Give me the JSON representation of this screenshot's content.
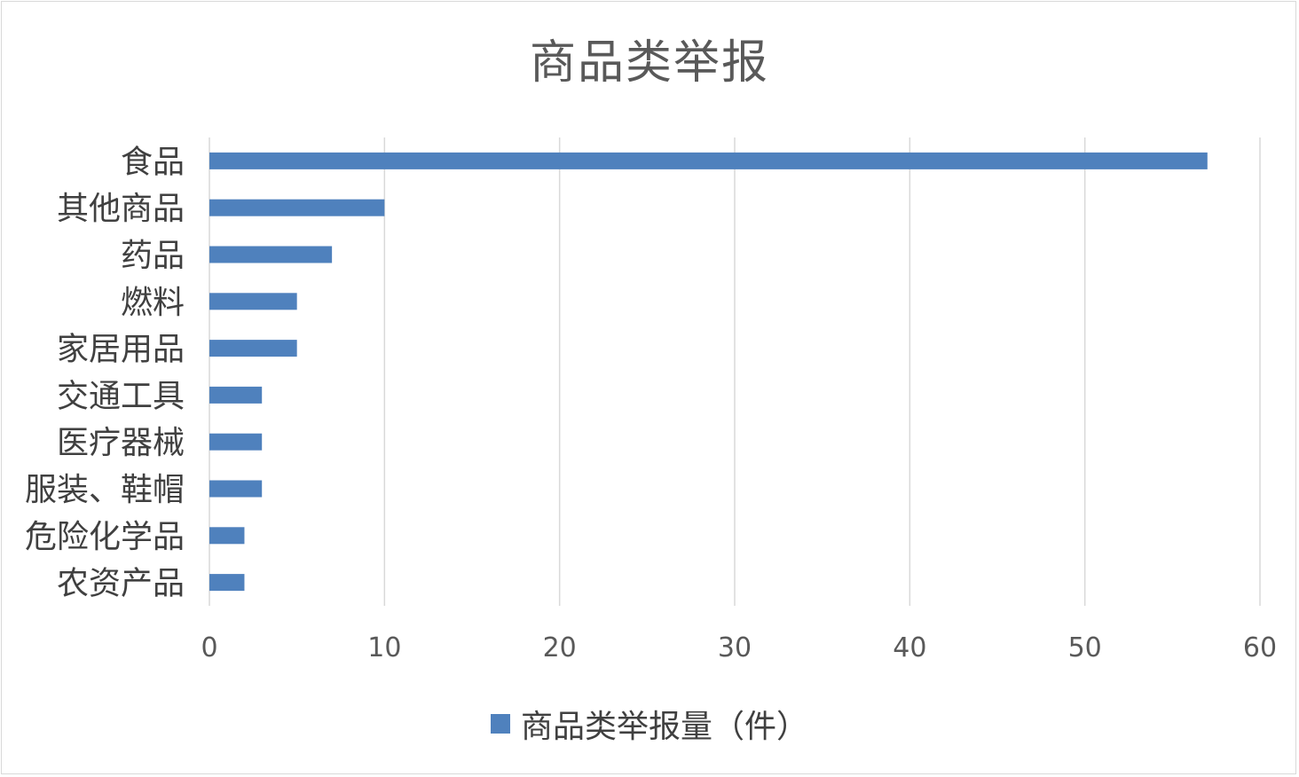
{
  "chart_data": {
    "type": "bar",
    "orientation": "horizontal",
    "title": "商品类举报",
    "categories": [
      "食品",
      "其他商品",
      "药品",
      "燃料",
      "家居用品",
      "交通工具",
      "医疗器械",
      "服装、鞋帽",
      "危险化学品",
      "农资产品"
    ],
    "series": [
      {
        "name": "商品类举报量（件）",
        "values": [
          57,
          10,
          7,
          5,
          5,
          3,
          3,
          3,
          2,
          2
        ],
        "color": "#4f81bd"
      }
    ],
    "xlim": [
      0,
      60
    ],
    "xticks": [
      "0",
      "10",
      "20",
      "30",
      "40",
      "50",
      "60"
    ],
    "grid": true,
    "legend_position": "bottom"
  }
}
